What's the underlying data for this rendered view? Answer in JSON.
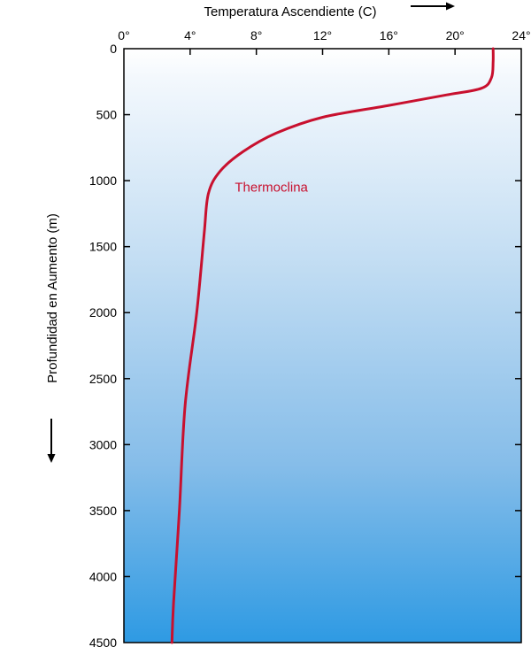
{
  "chart_data": {
    "type": "line",
    "title": "",
    "xlabel": "Temperatura Ascendiente (C)",
    "ylabel": "Profundidad en Aumento (m)",
    "xlim": [
      0,
      24
    ],
    "ylim": [
      0,
      4500
    ],
    "x_ticks": [
      0,
      4,
      8,
      12,
      16,
      20,
      24
    ],
    "x_tick_labels": [
      "0°",
      "4°",
      "8°",
      "12°",
      "16°",
      "20°",
      "24°"
    ],
    "y_ticks": [
      0,
      500,
      1000,
      1500,
      2000,
      2500,
      3000,
      3500,
      4000,
      4500
    ],
    "y_tick_labels": [
      "0",
      "500",
      "1000",
      "1500",
      "2000",
      "2500",
      "3000",
      "3500",
      "4000",
      "4500"
    ],
    "grid": false,
    "series": [
      {
        "name": "Temperatura",
        "color": "#c8102e",
        "points": [
          {
            "temp": 22.3,
            "depth": 0
          },
          {
            "temp": 22.3,
            "depth": 100
          },
          {
            "temp": 22.2,
            "depth": 220
          },
          {
            "temp": 21.6,
            "depth": 300
          },
          {
            "temp": 19.5,
            "depth": 350
          },
          {
            "temp": 16.0,
            "depth": 430
          },
          {
            "temp": 12.0,
            "depth": 520
          },
          {
            "temp": 9.2,
            "depth": 640
          },
          {
            "temp": 7.2,
            "depth": 780
          },
          {
            "temp": 5.8,
            "depth": 930
          },
          {
            "temp": 5.1,
            "depth": 1100
          },
          {
            "temp": 4.85,
            "depth": 1400
          },
          {
            "temp": 4.4,
            "depth": 2000
          },
          {
            "temp": 3.7,
            "depth": 2700
          },
          {
            "temp": 3.35,
            "depth": 3500
          },
          {
            "temp": 3.0,
            "depth": 4200
          },
          {
            "temp": 2.9,
            "depth": 4500
          }
        ]
      }
    ],
    "annotations": [
      {
        "text": "Thermoclina",
        "temp": 6.7,
        "depth": 1050,
        "color": "#c8102e"
      }
    ]
  },
  "x_arrow": "arrow-right-icon",
  "y_arrow": "arrow-down-icon"
}
